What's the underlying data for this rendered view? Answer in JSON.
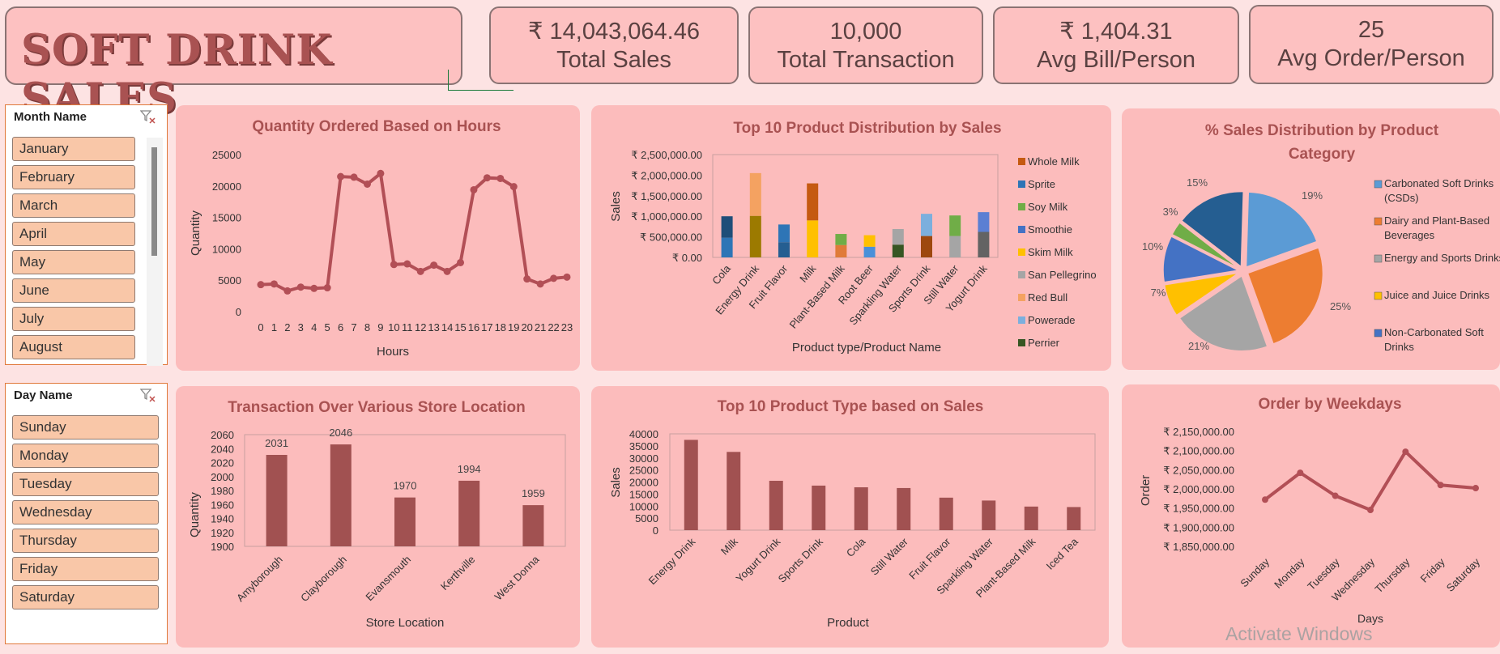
{
  "header": {
    "title": "SOFT DRINK SALES"
  },
  "kpis": [
    {
      "value": "₹ 14,043,064.46",
      "label": "Total Sales"
    },
    {
      "value": "10,000",
      "label": "Total Transaction"
    },
    {
      "value": "₹ 1,404.31",
      "label": "Avg Bill/Person"
    },
    {
      "value": "25",
      "label": "Avg Order/Person"
    }
  ],
  "month_slicer": {
    "title": "Month Name",
    "items": [
      "January",
      "February",
      "March",
      "April",
      "May",
      "June",
      "July",
      "August"
    ]
  },
  "day_slicer": {
    "title": "Day Name",
    "items": [
      "Sunday",
      "Monday",
      "Tuesday",
      "Wednesday",
      "Thursday",
      "Friday",
      "Saturday"
    ]
  },
  "watermark": "Activate Windows",
  "colors": {
    "background": "#fde3e3",
    "panel": "#fcbcbc",
    "accent": "#a95252",
    "line": "#b24f56",
    "bar": "#a15151"
  },
  "chart_data": [
    {
      "type": "line",
      "title": "Quantity Ordered Based on Hours",
      "xlabel": "Hours",
      "ylabel": "Quantity",
      "ylim": [
        0,
        25000
      ],
      "yticks": [
        "25000",
        "20000",
        "15000",
        "10000",
        "5000",
        "0"
      ],
      "x": [
        "0",
        "1",
        "2",
        "3",
        "4",
        "5",
        "6",
        "7",
        "8",
        "9",
        "10",
        "11",
        "12",
        "13",
        "14",
        "15",
        "16",
        "17",
        "18",
        "19",
        "20",
        "21",
        "22",
        "23"
      ],
      "values": [
        4300,
        4400,
        3300,
        3900,
        3700,
        3800,
        21500,
        21400,
        20300,
        22000,
        7500,
        7600,
        6400,
        7400,
        6400,
        7800,
        19400,
        21300,
        21200,
        19900,
        5200,
        4400,
        5300,
        5500
      ]
    },
    {
      "type": "bar",
      "stacked": true,
      "title": "Top 10 Product Distribution by Sales",
      "xlabel": "Product type/Product Name",
      "ylabel": "Sales",
      "ylim": [
        0,
        2500000
      ],
      "yticks": [
        "₹ 2,500,000.00",
        "₹ 2,000,000.00",
        "₹ 1,500,000.00",
        "₹ 1,000,000.00",
        "₹ 500,000.00",
        "₹ 0.00"
      ],
      "categories": [
        "Cola",
        "Energy Drink",
        "Fruit Flavor",
        "Milk",
        "Plant-Based Milk",
        "Root Beer",
        "Sparkling Water",
        "Sports Drink",
        "Still Water",
        "Yogurt Drink"
      ],
      "legend": [
        "Whole Milk",
        "Sprite",
        "Soy Milk",
        "Smoothie",
        "Skim Milk",
        "San Pellegrino",
        "Red Bull",
        "Powerade",
        "Perrier"
      ],
      "segments": [
        [
          {
            "v": 480000,
            "c": "#2e75b6"
          },
          {
            "v": 520000,
            "c": "#1f4e79"
          }
        ],
        [
          {
            "v": 1010000,
            "c": "#9c7a00"
          },
          {
            "v": 1040000,
            "c": "#f4a261"
          }
        ],
        [
          {
            "v": 370000,
            "c": "#255e91"
          },
          {
            "v": 430000,
            "c": "#2e75b6"
          }
        ],
        [
          {
            "v": 900000,
            "c": "#ffc000"
          },
          {
            "v": 900000,
            "c": "#c55a11"
          }
        ],
        [
          {
            "v": 300000,
            "c": "#e07b39"
          },
          {
            "v": 270000,
            "c": "#70ad47"
          }
        ],
        [
          {
            "v": 260000,
            "c": "#4a90d9"
          },
          {
            "v": 280000,
            "c": "#ffc000"
          }
        ],
        [
          {
            "v": 310000,
            "c": "#375623"
          },
          {
            "v": 380000,
            "c": "#a5a5a5"
          }
        ],
        [
          {
            "v": 520000,
            "c": "#9e480e"
          },
          {
            "v": 540000,
            "c": "#7cafdd"
          }
        ],
        [
          {
            "v": 520000,
            "c": "#a5a5a5"
          },
          {
            "v": 500000,
            "c": "#70ad47"
          }
        ],
        [
          {
            "v": 620000,
            "c": "#636363"
          },
          {
            "v": 480000,
            "c": "#5b7fd3"
          }
        ]
      ],
      "legend_colors": [
        "#c55a11",
        "#2e75b6",
        "#70ad47",
        "#4472c4",
        "#ffc000",
        "#a5a5a5",
        "#f4a261",
        "#7cafdd",
        "#375623"
      ]
    },
    {
      "type": "pie",
      "title": "% Sales Distribution by Product Category",
      "slices": [
        {
          "label": "Carbonated Soft Drinks (CSDs)",
          "value": 19,
          "color": "#5b9bd5"
        },
        {
          "label": "Dairy and Plant-Based Beverages",
          "value": 25,
          "color": "#ed7d31"
        },
        {
          "label": "Energy and Sports Drinks",
          "value": 21,
          "color": "#a5a5a5"
        },
        {
          "label": "Juice and Juice Drinks",
          "value": 7,
          "color": "#ffc000"
        },
        {
          "label": "Non-Carbonated Soft Drinks",
          "value": 10,
          "color": "#4472c4"
        },
        {
          "label": "",
          "value": 3,
          "color": "#70ad47"
        },
        {
          "label": "",
          "value": 15,
          "color": "#255e91"
        }
      ],
      "labels": [
        "19%",
        "25%",
        "21%",
        "7%",
        "10%",
        "3%",
        "15%"
      ],
      "legend": [
        "Carbonated Soft Drinks (CSDs)",
        "Dairy and Plant-Based Beverages",
        "Energy and Sports Drinks",
        "Juice and Juice Drinks",
        "Non-Carbonated Soft Drinks"
      ]
    },
    {
      "type": "bar",
      "title": "Transaction Over Various Store Location",
      "xlabel": "Store Location",
      "ylabel": "Quantity",
      "ylim": [
        1900,
        2060
      ],
      "yticks": [
        "2060",
        "2040",
        "2020",
        "2000",
        "1980",
        "1960",
        "1940",
        "1920",
        "1900"
      ],
      "categories": [
        "Amyborough",
        "Clayborough",
        "Evansmouth",
        "Kerthville",
        "West Donna"
      ],
      "values": [
        2031,
        2046,
        1970,
        1994,
        1959
      ]
    },
    {
      "type": "bar",
      "title": "Top 10 Product Type based on Sales",
      "xlabel": "Product",
      "ylabel": "Sales",
      "ylim": [
        0,
        40000
      ],
      "yticks": [
        "40000",
        "35000",
        "30000",
        "25000",
        "20000",
        "15000",
        "10000",
        "5000",
        "0"
      ],
      "categories": [
        "Energy Drink",
        "Milk",
        "Yogurt Drink",
        "Sports Drink",
        "Cola",
        "Still Water",
        "Fruit Flavor",
        "Sparkling Water",
        "Plant-Based Milk",
        "Iced Tea"
      ],
      "values": [
        37500,
        32500,
        20500,
        18500,
        17800,
        17500,
        13500,
        12300,
        9800,
        9600
      ]
    },
    {
      "type": "line",
      "title": "Order by Weekdays",
      "xlabel": "Days",
      "ylabel": "Order",
      "ylim": [
        1850000,
        2150000
      ],
      "yticks": [
        "₹ 2,150,000.00",
        "₹ 2,100,000.00",
        "₹ 2,050,000.00",
        "₹ 2,000,000.00",
        "₹ 1,950,000.00",
        "₹ 1,900,000.00",
        "₹ 1,850,000.00"
      ],
      "x": [
        "Sunday",
        "Monday",
        "Tuesday",
        "Wednesday",
        "Thursday",
        "Friday",
        "Saturday"
      ],
      "values": [
        1972000,
        2042000,
        1982000,
        1945000,
        2097000,
        2010000,
        2002000
      ]
    }
  ]
}
